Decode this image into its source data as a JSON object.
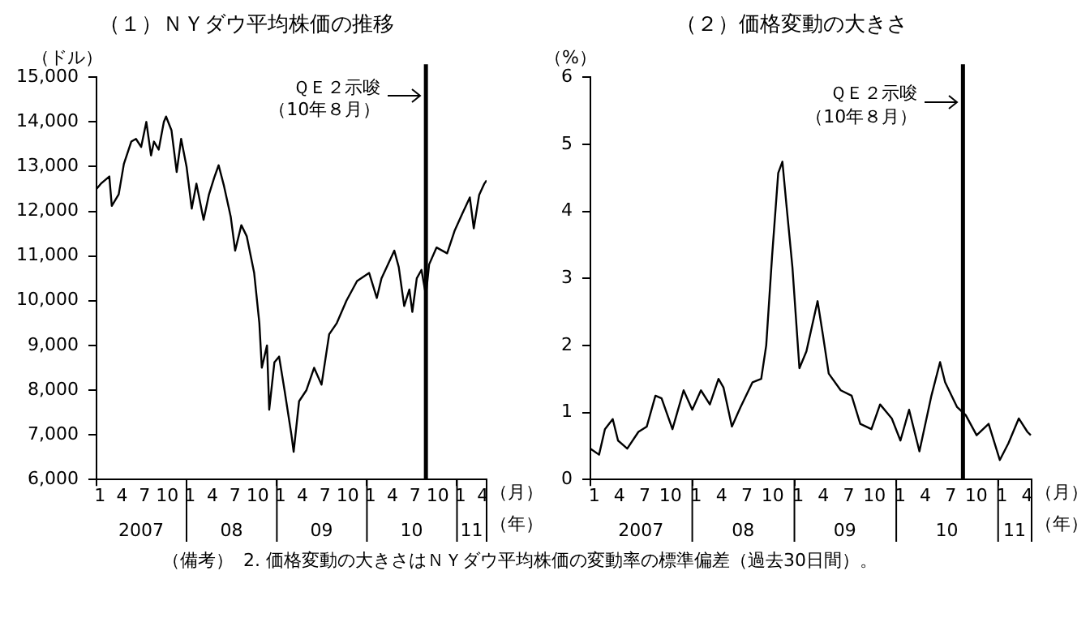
{
  "chart_data": [
    {
      "type": "line",
      "title": "（１）ＮＹダウ平均株価の推移",
      "ylabel": "（ドル）",
      "xlabel": "（月）",
      "x2label": "（年）",
      "legend": false,
      "grid": false,
      "marker": "none",
      "line_style": "solid",
      "xlim": [
        "2007-01-01",
        "2011-05-01"
      ],
      "xticks": [
        {
          "value": "2007-01-01",
          "label": null
        },
        {
          "value": "2007-01-15",
          "label": "1"
        },
        {
          "value": "2007-04-15",
          "label": "4"
        },
        {
          "value": "2007-07-15",
          "label": "7"
        },
        {
          "value": "2007-10-15",
          "label": "10"
        },
        {
          "value": "2008-01-01",
          "label": null
        },
        {
          "value": "2008-01-15",
          "label": "1"
        },
        {
          "value": "2008-04-15",
          "label": "4"
        },
        {
          "value": "2008-07-15",
          "label": "7"
        },
        {
          "value": "2008-10-15",
          "label": "10"
        },
        {
          "value": "2009-01-01",
          "label": null
        },
        {
          "value": "2009-01-15",
          "label": "1"
        },
        {
          "value": "2009-04-15",
          "label": "4"
        },
        {
          "value": "2009-07-15",
          "label": "7"
        },
        {
          "value": "2009-10-15",
          "label": "10"
        },
        {
          "value": "2010-01-01",
          "label": null
        },
        {
          "value": "2010-01-15",
          "label": "1"
        },
        {
          "value": "2010-04-15",
          "label": "4"
        },
        {
          "value": "2010-07-15",
          "label": "7"
        },
        {
          "value": "2010-10-15",
          "label": "10"
        },
        {
          "value": "2011-01-01",
          "label": null
        },
        {
          "value": "2011-01-15",
          "label": "1"
        },
        {
          "value": "2011-04-15",
          "label": "4"
        },
        {
          "value": "2011-05-01",
          "label": null
        }
      ],
      "x2lim": [
        "2007-01-01",
        "2011-05-01"
      ],
      "x2ticks": [
        {
          "value": "2007-07-01",
          "label": "2007"
        },
        {
          "value": "2008-07-01",
          "label": "08"
        },
        {
          "value": "2009-07-01",
          "label": "09"
        },
        {
          "value": "2010-07-01",
          "label": "10"
        },
        {
          "value": "2011-03-01",
          "label": "11"
        }
      ],
      "ylim": [
        6000,
        15000
      ],
      "yticks": [
        {
          "value": 6000,
          "label": "6,000"
        },
        {
          "value": 7000,
          "label": "7,000"
        },
        {
          "value": 8000,
          "label": "8,000"
        },
        {
          "value": 9000,
          "label": "9,000"
        },
        {
          "value": 10000,
          "label": "10,000"
        },
        {
          "value": 11000,
          "label": "11,000"
        },
        {
          "value": 12000,
          "label": "12,000"
        },
        {
          "value": 13000,
          "label": "13,000"
        },
        {
          "value": 14000,
          "label": "14,000"
        },
        {
          "value": 15000,
          "label": "15,000"
        }
      ],
      "ref_lines": [
        {
          "axis": "x",
          "value": "2010-08-28",
          "color": "#000000"
        }
      ],
      "annotations": [
        {
          "text": "ＱＥ２示唆",
          "x": "2010-08-28",
          "y": 14750
        },
        {
          "text": "（10年８月）",
          "x": "2010-08-28",
          "y": 14250
        }
      ],
      "series": [
        {
          "color": "#000000",
          "x": [
            "2007-01-01",
            "2007-01-21",
            "2007-02-22",
            "2007-03-04",
            "2007-04-01",
            "2007-04-22",
            "2007-05-22",
            "2007-06-10",
            "2007-07-01",
            "2007-07-22",
            "2007-08-10",
            "2007-08-22",
            "2007-09-10",
            "2007-10-01",
            "2007-10-10",
            "2007-11-01",
            "2007-11-22",
            "2007-12-10",
            "2008-01-01",
            "2008-01-22",
            "2008-02-10",
            "2008-03-10",
            "2008-04-01",
            "2008-04-22",
            "2008-05-10",
            "2008-06-01",
            "2008-06-28",
            "2008-07-16",
            "2008-08-10",
            "2008-09-01",
            "2008-10-01",
            "2008-10-22",
            "2008-11-01",
            "2008-11-22",
            "2008-12-01",
            "2008-12-22",
            "2009-01-10",
            "2009-02-01",
            "2009-03-01",
            "2009-03-10",
            "2009-04-01",
            "2009-05-01",
            "2009-06-01",
            "2009-07-01",
            "2009-08-01",
            "2009-09-01",
            "2009-10-10",
            "2009-11-22",
            "2010-01-10",
            "2010-02-10",
            "2010-03-01",
            "2010-03-22",
            "2010-04-22",
            "2010-05-10",
            "2010-06-01",
            "2010-06-22",
            "2010-07-04",
            "2010-07-22",
            "2010-08-10",
            "2010-08-28",
            "2010-09-10",
            "2010-10-10",
            "2010-11-22",
            "2010-12-22",
            "2011-01-22",
            "2011-02-22",
            "2011-03-10",
            "2011-04-01",
            "2011-04-22",
            "2011-05-01"
          ],
          "values": [
            12500,
            12630,
            12780,
            12120,
            12380,
            13060,
            13560,
            13620,
            13440,
            14000,
            13250,
            13560,
            13380,
            14000,
            14120,
            13810,
            12880,
            13620,
            13000,
            12060,
            12620,
            11810,
            12380,
            12750,
            13030,
            12560,
            11880,
            11120,
            11690,
            11440,
            10620,
            9500,
            8500,
            9000,
            7560,
            8620,
            8750,
            8000,
            7000,
            6620,
            7750,
            8000,
            8500,
            8120,
            9250,
            9500,
            10000,
            10440,
            10620,
            10060,
            10500,
            10750,
            11120,
            10750,
            9880,
            10250,
            9750,
            10500,
            10690,
            10120,
            10810,
            11190,
            11060,
            11560,
            11940,
            12310,
            11620,
            12370,
            12620,
            12690
          ]
        }
      ]
    },
    {
      "type": "line",
      "title": "（２）価格変動の大きさ",
      "ylabel": "（%）",
      "xlabel": "（月）",
      "x2label": "（年）",
      "legend": false,
      "grid": false,
      "marker": "none",
      "line_style": "solid",
      "xlim": [
        "2007-01-01",
        "2011-05-01"
      ],
      "xticks": [
        {
          "value": "2007-01-01",
          "label": null
        },
        {
          "value": "2007-01-15",
          "label": "1"
        },
        {
          "value": "2007-04-15",
          "label": "4"
        },
        {
          "value": "2007-07-15",
          "label": "7"
        },
        {
          "value": "2007-10-15",
          "label": "10"
        },
        {
          "value": "2008-01-01",
          "label": null
        },
        {
          "value": "2008-01-15",
          "label": "1"
        },
        {
          "value": "2008-04-15",
          "label": "4"
        },
        {
          "value": "2008-07-15",
          "label": "7"
        },
        {
          "value": "2008-10-15",
          "label": "10"
        },
        {
          "value": "2009-01-01",
          "label": null
        },
        {
          "value": "2009-01-15",
          "label": "1"
        },
        {
          "value": "2009-04-15",
          "label": "4"
        },
        {
          "value": "2009-07-15",
          "label": "7"
        },
        {
          "value": "2009-10-15",
          "label": "10"
        },
        {
          "value": "2010-01-01",
          "label": null
        },
        {
          "value": "2010-01-15",
          "label": "1"
        },
        {
          "value": "2010-04-15",
          "label": "4"
        },
        {
          "value": "2010-07-15",
          "label": "7"
        },
        {
          "value": "2010-10-15",
          "label": "10"
        },
        {
          "value": "2011-01-01",
          "label": null
        },
        {
          "value": "2011-01-15",
          "label": "1"
        },
        {
          "value": "2011-04-15",
          "label": "4"
        },
        {
          "value": "2011-05-01",
          "label": null
        }
      ],
      "x2lim": [
        "2007-01-01",
        "2011-05-01"
      ],
      "x2ticks": [
        {
          "value": "2007-07-01",
          "label": "2007"
        },
        {
          "value": "2008-07-01",
          "label": "08"
        },
        {
          "value": "2009-07-01",
          "label": "09"
        },
        {
          "value": "2010-07-01",
          "label": "10"
        },
        {
          "value": "2011-03-01",
          "label": "11"
        }
      ],
      "ylim": [
        0,
        6
      ],
      "yticks": [
        0,
        1,
        2,
        3,
        4,
        5,
        6
      ],
      "ref_lines": [
        {
          "axis": "x",
          "value": "2010-08-28",
          "color": "#000000"
        }
      ],
      "annotations": [
        {
          "text": "ＱＥ２示唆",
          "x": "2010-08-28",
          "y": 5.75
        },
        {
          "text": "（10年８月）",
          "x": "2010-08-28",
          "y": 5.4
        },
        "（備考）",
        "2. 価格変動の大きさはＮＹダウ平均株価の変動率の標準偏差（過去30日間）。"
      ],
      "series": [
        {
          "color": "#000000",
          "x": [
            "2007-01-01",
            "2007-02-01",
            "2007-02-22",
            "2007-03-22",
            "2007-04-10",
            "2007-05-13",
            "2007-06-22",
            "2007-07-22",
            "2007-08-22",
            "2007-09-13",
            "2007-10-22",
            "2007-12-01",
            "2008-01-01",
            "2008-02-01",
            "2008-03-04",
            "2008-04-04",
            "2008-04-22",
            "2008-05-22",
            "2008-06-22",
            "2008-08-04",
            "2008-09-04",
            "2008-09-22",
            "2008-10-13",
            "2008-11-04",
            "2008-11-19",
            "2008-12-04",
            "2008-12-25",
            "2009-01-19",
            "2009-02-13",
            "2009-03-25",
            "2009-04-13",
            "2009-05-04",
            "2009-06-16",
            "2009-07-25",
            "2009-08-25",
            "2009-10-04",
            "2009-11-04",
            "2009-12-16",
            "2010-01-16",
            "2010-02-16",
            "2010-03-25",
            "2010-05-07",
            "2010-06-07",
            "2010-06-25",
            "2010-08-07",
            "2010-09-07",
            "2010-10-16",
            "2010-11-28",
            "2011-01-07",
            "2011-02-07",
            "2011-03-16",
            "2011-04-16",
            "2011-04-28"
          ],
          "values": [
            0.46,
            0.37,
            0.75,
            0.9,
            0.58,
            0.46,
            0.71,
            0.79,
            1.25,
            1.21,
            0.75,
            1.33,
            1.04,
            1.33,
            1.12,
            1.5,
            1.37,
            0.79,
            1.08,
            1.45,
            1.5,
            2.0,
            3.33,
            4.57,
            4.74,
            4.07,
            3.16,
            1.66,
            1.91,
            2.66,
            2.16,
            1.58,
            1.33,
            1.25,
            0.83,
            0.75,
            1.12,
            0.91,
            0.58,
            1.04,
            0.42,
            1.25,
            1.75,
            1.45,
            1.08,
            0.96,
            0.66,
            0.83,
            0.29,
            0.54,
            0.91,
            0.71,
            0.66
          ]
        }
      ]
    }
  ]
}
